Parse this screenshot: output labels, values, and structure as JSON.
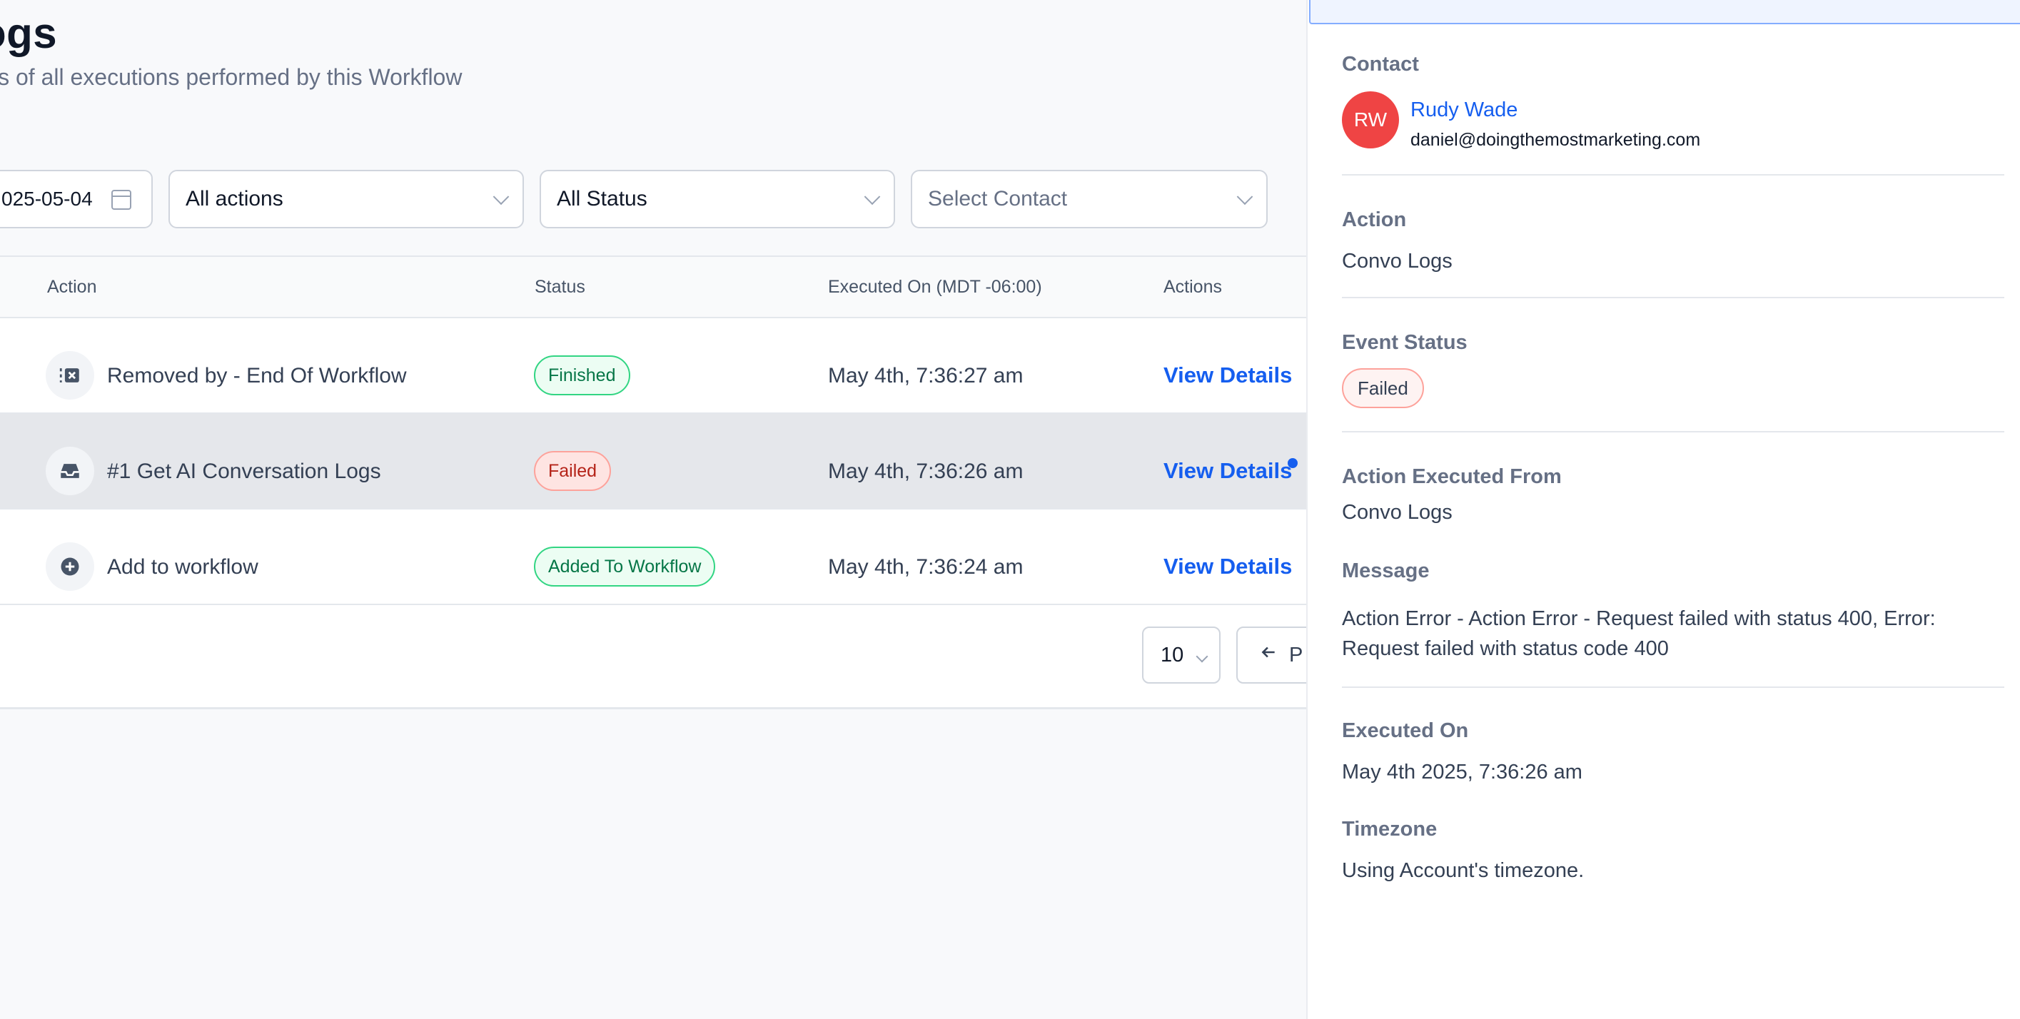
{
  "page": {
    "title": "ogs",
    "subtitle": "ls of all executions performed by this Workflow"
  },
  "filters": {
    "date_value": "025-05-04",
    "actions": "All actions",
    "status": "All Status",
    "contact_placeholder": "Select Contact"
  },
  "table": {
    "headers": {
      "action": "Action",
      "status": "Status",
      "executed_on": "Executed On (MDT -06:00)",
      "actions": "Actions"
    },
    "rows": [
      {
        "icon": "remove-from-workflow-icon",
        "action": "Removed by - End Of Workflow",
        "status": "Finished",
        "status_color": "#067647",
        "executed": "May 4th, 7:36:27 am",
        "link": "View Details"
      },
      {
        "icon": "inbox-icon",
        "action": "#1 Get AI Conversation Logs",
        "status": "Failed",
        "status_color": "#b42318",
        "executed": "May 4th, 7:36:26 am",
        "link": "View Details"
      },
      {
        "icon": "plus-circle-icon",
        "action": "Add to workflow",
        "status": "Added To Workflow",
        "status_color": "#067647",
        "executed": "May 4th, 7:36:24 am",
        "link": "View Details"
      }
    ]
  },
  "pagination": {
    "page_size": "10",
    "prev_label": "P"
  },
  "drawer": {
    "contact_label": "Contact",
    "avatar_initials": "RW",
    "avatar_color": "#ef4444",
    "contact_name": "Rudy Wade",
    "contact_email": "daniel@doingthemostmarketing.com",
    "action_label": "Action",
    "action_value": "Convo Logs",
    "event_status_label": "Event Status",
    "event_status_value": "Failed",
    "executed_from_label": "Action Executed From",
    "executed_from_value": "Convo Logs",
    "message_label": "Message",
    "message_value": "Action Error - Action Error - Request failed with status 400, Error: Request failed with status code 400",
    "executed_on_label": "Executed On",
    "executed_on_value": "May 4th 2025, 7:36:26 am",
    "timezone_label": "Timezone",
    "timezone_value": "Using Account's timezone."
  }
}
